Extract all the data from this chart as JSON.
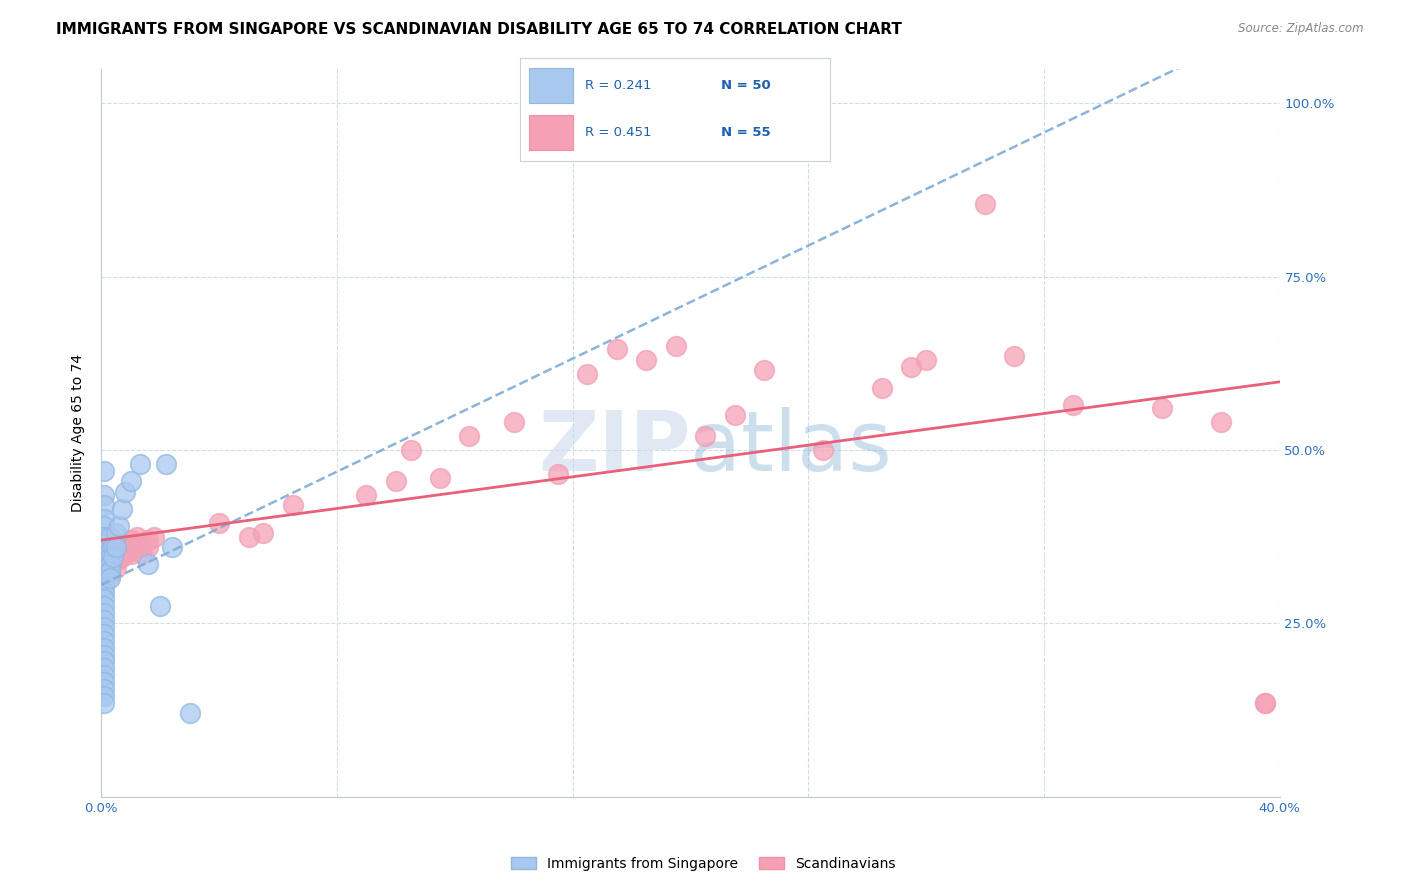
{
  "title": "IMMIGRANTS FROM SINGAPORE VS SCANDINAVIAN DISABILITY AGE 65 TO 74 CORRELATION CHART",
  "source": "Source: ZipAtlas.com",
  "ylabel": "Disability Age 65 to 74",
  "xlim": [
    0.0,
    0.4
  ],
  "ylim": [
    0.0,
    1.05
  ],
  "color_singapore": "#a8c8f0",
  "color_scandinavian": "#f5a0b5",
  "trend_color_singapore": "#80acd8",
  "trend_color_scandinavian": "#e8607a",
  "singapore_points": [
    [
      0.001,
      0.47
    ],
    [
      0.001,
      0.435
    ],
    [
      0.001,
      0.42
    ],
    [
      0.001,
      0.4
    ],
    [
      0.001,
      0.39
    ],
    [
      0.001,
      0.375
    ],
    [
      0.001,
      0.365
    ],
    [
      0.001,
      0.355
    ],
    [
      0.001,
      0.345
    ],
    [
      0.001,
      0.335
    ],
    [
      0.001,
      0.325
    ],
    [
      0.001,
      0.315
    ],
    [
      0.001,
      0.305
    ],
    [
      0.001,
      0.295
    ],
    [
      0.001,
      0.285
    ],
    [
      0.001,
      0.275
    ],
    [
      0.001,
      0.265
    ],
    [
      0.001,
      0.255
    ],
    [
      0.001,
      0.245
    ],
    [
      0.001,
      0.235
    ],
    [
      0.001,
      0.225
    ],
    [
      0.001,
      0.215
    ],
    [
      0.001,
      0.205
    ],
    [
      0.001,
      0.195
    ],
    [
      0.001,
      0.185
    ],
    [
      0.001,
      0.175
    ],
    [
      0.001,
      0.165
    ],
    [
      0.001,
      0.155
    ],
    [
      0.001,
      0.145
    ],
    [
      0.001,
      0.135
    ],
    [
      0.003,
      0.375
    ],
    [
      0.003,
      0.355
    ],
    [
      0.003,
      0.345
    ],
    [
      0.003,
      0.335
    ],
    [
      0.003,
      0.325
    ],
    [
      0.003,
      0.315
    ],
    [
      0.004,
      0.36
    ],
    [
      0.004,
      0.345
    ],
    [
      0.005,
      0.38
    ],
    [
      0.005,
      0.36
    ],
    [
      0.006,
      0.39
    ],
    [
      0.007,
      0.415
    ],
    [
      0.008,
      0.44
    ],
    [
      0.01,
      0.455
    ],
    [
      0.013,
      0.48
    ],
    [
      0.016,
      0.335
    ],
    [
      0.02,
      0.275
    ],
    [
      0.022,
      0.48
    ],
    [
      0.024,
      0.36
    ],
    [
      0.03,
      0.12
    ]
  ],
  "scandinavian_points": [
    [
      0.001,
      0.355
    ],
    [
      0.001,
      0.345
    ],
    [
      0.001,
      0.335
    ],
    [
      0.001,
      0.325
    ],
    [
      0.001,
      0.315
    ],
    [
      0.001,
      0.305
    ],
    [
      0.003,
      0.36
    ],
    [
      0.003,
      0.35
    ],
    [
      0.003,
      0.34
    ],
    [
      0.003,
      0.33
    ],
    [
      0.003,
      0.32
    ],
    [
      0.004,
      0.34
    ],
    [
      0.005,
      0.355
    ],
    [
      0.005,
      0.34
    ],
    [
      0.005,
      0.33
    ],
    [
      0.006,
      0.345
    ],
    [
      0.007,
      0.355
    ],
    [
      0.007,
      0.345
    ],
    [
      0.008,
      0.36
    ],
    [
      0.008,
      0.35
    ],
    [
      0.009,
      0.355
    ],
    [
      0.01,
      0.37
    ],
    [
      0.01,
      0.36
    ],
    [
      0.01,
      0.35
    ],
    [
      0.011,
      0.365
    ],
    [
      0.012,
      0.375
    ],
    [
      0.012,
      0.36
    ],
    [
      0.013,
      0.365
    ],
    [
      0.014,
      0.35
    ],
    [
      0.016,
      0.37
    ],
    [
      0.016,
      0.36
    ],
    [
      0.018,
      0.375
    ],
    [
      0.04,
      0.395
    ],
    [
      0.05,
      0.375
    ],
    [
      0.055,
      0.38
    ],
    [
      0.065,
      0.42
    ],
    [
      0.09,
      0.435
    ],
    [
      0.1,
      0.455
    ],
    [
      0.105,
      0.5
    ],
    [
      0.115,
      0.46
    ],
    [
      0.125,
      0.52
    ],
    [
      0.14,
      0.54
    ],
    [
      0.155,
      0.465
    ],
    [
      0.165,
      0.61
    ],
    [
      0.175,
      0.645
    ],
    [
      0.185,
      0.63
    ],
    [
      0.195,
      0.65
    ],
    [
      0.205,
      0.52
    ],
    [
      0.215,
      0.55
    ],
    [
      0.225,
      0.615
    ],
    [
      0.245,
      0.5
    ],
    [
      0.265,
      0.59
    ],
    [
      0.275,
      0.62
    ],
    [
      0.28,
      0.63
    ],
    [
      0.3,
      0.855
    ],
    [
      0.31,
      0.635
    ],
    [
      0.33,
      0.565
    ],
    [
      0.36,
      0.56
    ],
    [
      0.38,
      0.54
    ],
    [
      0.395,
      0.135
    ],
    [
      0.395,
      0.135
    ]
  ],
  "background_color": "#ffffff",
  "grid_color": "#d0dce8",
  "watermark": "ZIPatlas",
  "watermark_color": "#c8d8ea",
  "title_fontsize": 11,
  "tick_fontsize": 9.5,
  "axis_label_fontsize": 10
}
